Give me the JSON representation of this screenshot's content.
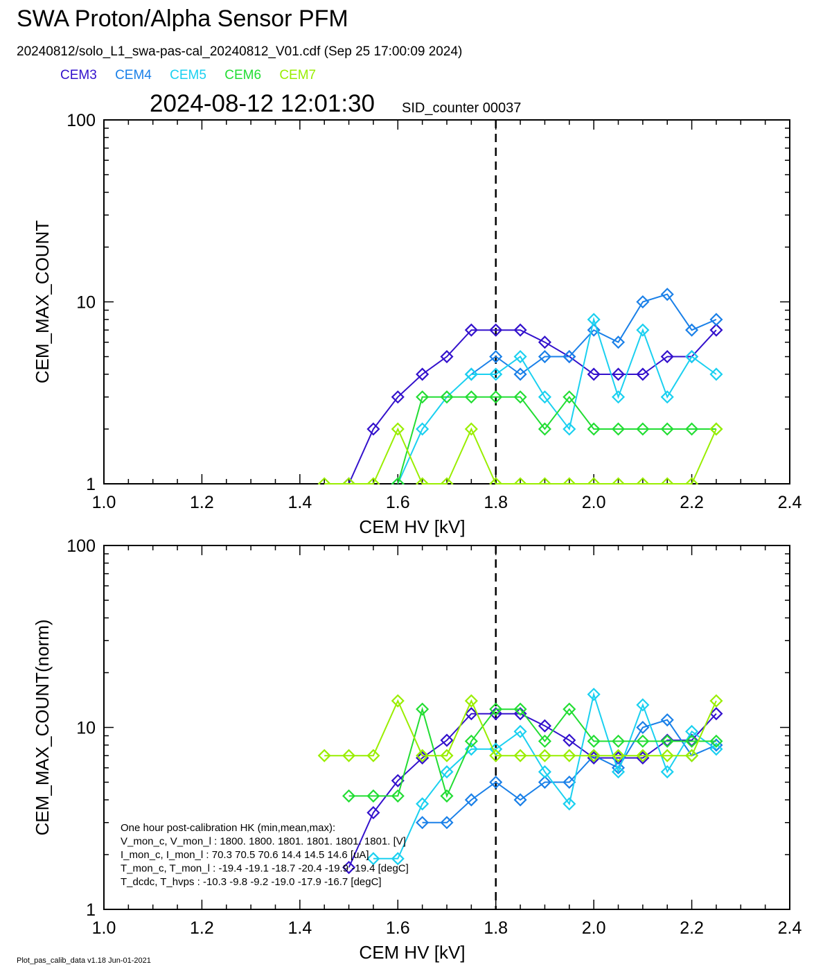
{
  "header": {
    "title": "SWA Proton/Alpha Sensor PFM",
    "subtitle": "20240812/solo_L1_swa-pas-cal_20240812_V01.cdf  (Sep 25 17:00:09 2024)",
    "timestamp": "2024-08-12 12:01:30",
    "sid": "SID_counter 00037"
  },
  "legend": [
    {
      "name": "CEM3",
      "color": "#3311cc"
    },
    {
      "name": "CEM4",
      "color": "#1a80e8"
    },
    {
      "name": "CEM5",
      "color": "#1ad0f0"
    },
    {
      "name": "CEM6",
      "color": "#22dd33"
    },
    {
      "name": "CEM7",
      "color": "#99ee00"
    }
  ],
  "footer": "Plot_pas_calib_data v1.18 Jun-01-2021",
  "hk_box": {
    "lines": [
      "One hour post-calibration HK (min,mean,max):",
      "V_mon_c, V_mon_l :    1800.  1800.  1801.       1801.  1801.  1801. [V]",
      "I_mon_c, I_mon_l :      70.3   70.5   70.6        14.4   14.5   14.6  [uA]",
      "T_mon_c, T_mon_l :    -19.4  -19.1  -18.7        -20.4  -19.9  -19.4  [degC]",
      "T_dcdc,    T_hvps :     -10.3   -9.8   -9.2          -19.0  -17.9  -16.7  [degC]"
    ]
  },
  "chart_data": [
    {
      "type": "line",
      "xlabel": "CEM HV [kV]",
      "ylabel": "CEM_MAX_COUNT",
      "xlim": [
        1.0,
        2.4
      ],
      "ylim": [
        1,
        100
      ],
      "yscale": "log",
      "xticks": [
        "1.0",
        "1.2",
        "1.4",
        "1.6",
        "1.8",
        "2.0",
        "2.2",
        "2.4"
      ],
      "yticks": [
        "1",
        "10",
        "100"
      ],
      "vline_x": 1.8,
      "x": [
        1.45,
        1.5,
        1.55,
        1.6,
        1.65,
        1.7,
        1.75,
        1.8,
        1.85,
        1.9,
        1.95,
        2.0,
        2.05,
        2.1,
        2.15,
        2.2,
        2.25
      ],
      "series": [
        {
          "name": "CEM3",
          "color": "#3311cc",
          "values": [
            null,
            1,
            2,
            3,
            4,
            5,
            7,
            7,
            7,
            6,
            5,
            4,
            4,
            4,
            5,
            5,
            7
          ]
        },
        {
          "name": "CEM4",
          "color": "#1a80e8",
          "values": [
            null,
            null,
            null,
            null,
            null,
            null,
            4,
            5,
            4,
            5,
            5,
            7,
            6,
            10,
            11,
            7,
            8
          ]
        },
        {
          "name": "CEM5",
          "color": "#1ad0f0",
          "values": [
            null,
            null,
            null,
            1,
            2,
            3,
            4,
            4,
            5,
            3,
            2,
            8,
            3,
            7,
            3,
            5,
            4
          ]
        },
        {
          "name": "CEM6",
          "color": "#22dd33",
          "values": [
            null,
            null,
            null,
            1,
            3,
            3,
            3,
            3,
            3,
            2,
            3,
            2,
            2,
            2,
            2,
            2,
            2
          ]
        },
        {
          "name": "CEM7",
          "color": "#99ee00",
          "values": [
            1,
            1,
            1,
            2,
            1,
            1,
            2,
            1,
            1,
            1,
            1,
            1,
            1,
            1,
            1,
            1,
            2
          ]
        }
      ]
    },
    {
      "type": "line",
      "xlabel": "CEM HV [kV]",
      "ylabel": "CEM_MAX_COUNT(norm)",
      "xlim": [
        1.0,
        2.4
      ],
      "ylim": [
        1,
        100
      ],
      "yscale": "log",
      "xticks": [
        "1.0",
        "1.2",
        "1.4",
        "1.6",
        "1.8",
        "2.0",
        "2.2",
        "2.4"
      ],
      "yticks": [
        "1",
        "10",
        "100"
      ],
      "vline_x": 1.8,
      "x": [
        1.45,
        1.5,
        1.55,
        1.6,
        1.65,
        1.7,
        1.75,
        1.8,
        1.85,
        1.9,
        1.95,
        2.0,
        2.05,
        2.1,
        2.15,
        2.2,
        2.25
      ],
      "series": [
        {
          "name": "CEM3",
          "color": "#3311cc",
          "values": [
            null,
            1.7,
            3.4,
            5.1,
            6.8,
            8.5,
            11.9,
            11.9,
            11.9,
            10.2,
            8.5,
            6.8,
            6.8,
            6.8,
            8.5,
            8.5,
            11.9
          ]
        },
        {
          "name": "CEM4",
          "color": "#1a80e8",
          "values": [
            null,
            null,
            null,
            null,
            3,
            3,
            4,
            5,
            4,
            5,
            5,
            7,
            6,
            10,
            11,
            7,
            8
          ]
        },
        {
          "name": "CEM5",
          "color": "#1ad0f0",
          "values": [
            null,
            null,
            1.9,
            1.9,
            3.8,
            5.7,
            7.6,
            7.6,
            9.5,
            5.7,
            3.8,
            15.2,
            5.7,
            13.3,
            5.7,
            9.5,
            7.6
          ]
        },
        {
          "name": "CEM6",
          "color": "#22dd33",
          "values": [
            null,
            4.2,
            4.2,
            4.2,
            12.6,
            4.2,
            8.4,
            12.6,
            12.6,
            8.4,
            12.6,
            8.4,
            8.4,
            8.4,
            8.4,
            8.4,
            8.4
          ]
        },
        {
          "name": "CEM7",
          "color": "#99ee00",
          "values": [
            7,
            7,
            7,
            14,
            7,
            7,
            14,
            7,
            7,
            7,
            7,
            7,
            7,
            7,
            7,
            7,
            14
          ]
        }
      ]
    }
  ]
}
